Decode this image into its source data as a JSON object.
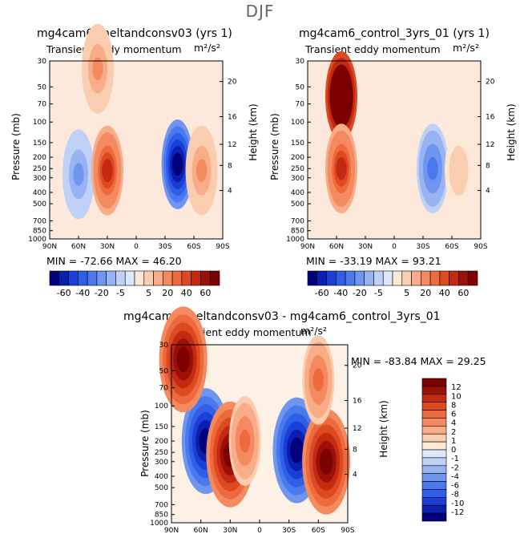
{
  "season": "DJF",
  "panels": [
    {
      "title": "mg4cam6_meltandconsv03 (yrs 1)",
      "subtitle": "Transient eddy momentum",
      "units": "m²/s²",
      "min_max": "MIN = -72.66   MAX =  46.20"
    },
    {
      "title": "mg4cam6_control_3yrs_01 (yrs 1)",
      "subtitle": "Transient eddy momentum",
      "units": "m²/s²",
      "min_max": "MIN = -33.19   MAX =  93.21"
    },
    {
      "title": "mg4cam6_meltandconsv03 - mg4cam6_control_3yrs_01",
      "subtitle": "Transient eddy momentum",
      "units": "m²/s²",
      "min_max": "MIN = -83.84   MAX =   29.25"
    }
  ],
  "axes": {
    "ylabel_left": "Pressure (mb)",
    "ylabel_right": "Height (km)",
    "pressure_ticks": [
      "30",
      "50",
      "70",
      "100",
      "150",
      "200",
      "250",
      "300",
      "400",
      "500",
      "700",
      "850",
      "1000"
    ],
    "height_ticks": [
      "20",
      "16",
      "12",
      "8",
      "4"
    ],
    "lat_ticks": [
      "90N",
      "60N",
      "30N",
      "0",
      "30S",
      "60S",
      "90S"
    ]
  },
  "colorbar_top": {
    "labels": [
      "-60",
      "-40",
      "-20",
      "-5",
      "5",
      "20",
      "40",
      "60"
    ]
  },
  "colorbar_diff": {
    "labels": [
      "12",
      "10",
      "8",
      "6",
      "4",
      "2",
      "1",
      "0",
      "-1",
      "-2",
      "-4",
      "-6",
      "-8",
      "-10",
      "-12"
    ]
  },
  "colors": {
    "blue_scale": [
      "#00007f",
      "#0a1fb0",
      "#1a3fd6",
      "#2f5fe8",
      "#4a79ee",
      "#6f95ef",
      "#97b3f2",
      "#bfd1f7",
      "#dde8fb"
    ],
    "red_scale": [
      "#fde7d5",
      "#fbcdb0",
      "#f8ac87",
      "#f48a60",
      "#ee6a3e",
      "#dd4a21",
      "#c42a12",
      "#9c1007",
      "#7d0000"
    ]
  },
  "chart_data": [
    {
      "type": "heatmap",
      "title": "mg4cam6_meltandconsv03 (yrs 1)",
      "subtitle": "Transient eddy momentum",
      "units": "m²/s²",
      "x_ticks": [
        "90N",
        "60N",
        "30N",
        "0",
        "30S",
        "60S",
        "90S"
      ],
      "y_ticks_pressure_mb": [
        30,
        50,
        70,
        100,
        150,
        200,
        250,
        300,
        400,
        500,
        700,
        850,
        1000
      ],
      "y_ticks_height_km": [
        20,
        16,
        12,
        8,
        4
      ],
      "min": -72.66,
      "max": 46.2,
      "features": [
        {
          "lat": 40,
          "p_mb": 35,
          "value": 20
        },
        {
          "lat": 60,
          "p_mb": 280,
          "value": -20
        },
        {
          "lat": 30,
          "p_mb": 260,
          "value": 40
        },
        {
          "lat": -43,
          "p_mb": 230,
          "value": -60
        },
        {
          "lat": -68,
          "p_mb": 260,
          "value": 20
        }
      ]
    },
    {
      "type": "heatmap",
      "title": "mg4cam6_control_3yrs_01 (yrs 1)",
      "subtitle": "Transient eddy momentum",
      "units": "m²/s²",
      "x_ticks": [
        "90N",
        "60N",
        "30N",
        "0",
        "30S",
        "60S",
        "90S"
      ],
      "y_ticks_pressure_mb": [
        30,
        50,
        70,
        100,
        150,
        200,
        250,
        300,
        400,
        500,
        700,
        850,
        1000
      ],
      "y_ticks_height_km": [
        20,
        16,
        12,
        8,
        4
      ],
      "min": -33.19,
      "max": 93.21,
      "features": [
        {
          "lat": 55,
          "p_mb": 60,
          "value": 90
        },
        {
          "lat": 55,
          "p_mb": 250,
          "value": 40
        },
        {
          "lat": -40,
          "p_mb": 250,
          "value": -30
        },
        {
          "lat": -67,
          "p_mb": 260,
          "value": 10
        }
      ]
    },
    {
      "type": "heatmap",
      "title": "mg4cam6_meltandconsv03 - mg4cam6_control_3yrs_01",
      "subtitle": "Transient eddy momentum",
      "units": "m²/s²",
      "x_ticks": [
        "90N",
        "60N",
        "30N",
        "0",
        "30S",
        "60S",
        "90S"
      ],
      "y_ticks_pressure_mb": [
        30,
        50,
        70,
        100,
        150,
        200,
        250,
        300,
        400,
        500,
        700,
        850,
        1000
      ],
      "y_ticks_height_km": [
        20,
        16,
        12,
        8,
        4
      ],
      "min": -83.84,
      "max": 29.25,
      "features": [
        {
          "lat": 55,
          "p_mb": 200,
          "value": -12
        },
        {
          "lat": 78,
          "p_mb": 40,
          "value": 12
        },
        {
          "lat": 30,
          "p_mb": 260,
          "value": 12
        },
        {
          "lat": 15,
          "p_mb": 200,
          "value": 6
        },
        {
          "lat": -38,
          "p_mb": 240,
          "value": -12
        },
        {
          "lat": -68,
          "p_mb": 300,
          "value": 12
        },
        {
          "lat": -60,
          "p_mb": 60,
          "value": 6
        }
      ]
    }
  ]
}
